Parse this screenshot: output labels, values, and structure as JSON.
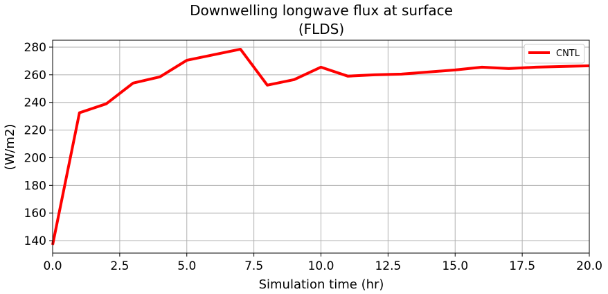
{
  "chart_data": {
    "type": "line",
    "title": "Downwelling longwave flux at surface",
    "subtitle": "(FLDS)",
    "xlabel": "Simulation time (hr)",
    "ylabel": "(W/m2)",
    "xlim": [
      0,
      20
    ],
    "ylim": [
      131,
      285
    ],
    "xticks": [
      0,
      2.5,
      5,
      7.5,
      10,
      12.5,
      15,
      17.5,
      20
    ],
    "xtick_labels": [
      "0.0",
      "2.5",
      "5.0",
      "7.5",
      "10.0",
      "12.5",
      "15.0",
      "17.5",
      "20.0"
    ],
    "yticks": [
      140,
      160,
      180,
      200,
      220,
      240,
      260,
      280
    ],
    "ytick_labels": [
      "140",
      "160",
      "180",
      "200",
      "220",
      "240",
      "260",
      "280"
    ],
    "grid": true,
    "legend_position": "top-right",
    "series": [
      {
        "name": "CNTL",
        "color": "#ff0000",
        "x": [
          0,
          1,
          2,
          3,
          4,
          5,
          6,
          7,
          8,
          9,
          10,
          11,
          12,
          13,
          14,
          15,
          16,
          17,
          18,
          19,
          20
        ],
        "values": [
          137,
          232.5,
          239,
          254,
          258.5,
          270.5,
          274.5,
          278.5,
          252.5,
          256.5,
          265.5,
          259,
          260,
          260.5,
          262,
          263.5,
          265.5,
          264.5,
          265.5,
          266,
          266.5
        ]
      }
    ]
  }
}
